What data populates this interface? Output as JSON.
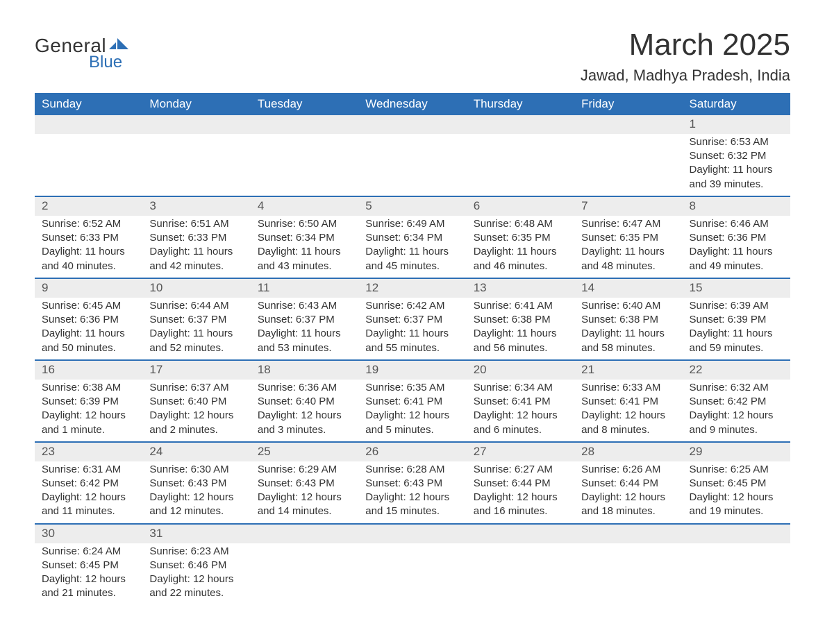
{
  "logo": {
    "text1": "General",
    "text2": "Blue",
    "shape_color": "#2d6fb5"
  },
  "title": "March 2025",
  "location": "Jawad, Madhya Pradesh, India",
  "colors": {
    "header_bg": "#2d6fb5",
    "header_text": "#ffffff",
    "daynum_bg": "#ededed",
    "row_divider": "#2d6fb5",
    "text": "#333333",
    "page_bg": "#ffffff"
  },
  "typography": {
    "title_fontsize": 44,
    "location_fontsize": 22,
    "header_fontsize": 17,
    "body_fontsize": 15
  },
  "day_headers": [
    "Sunday",
    "Monday",
    "Tuesday",
    "Wednesday",
    "Thursday",
    "Friday",
    "Saturday"
  ],
  "weeks": [
    [
      null,
      null,
      null,
      null,
      null,
      null,
      {
        "n": "1",
        "sunrise": "Sunrise: 6:53 AM",
        "sunset": "Sunset: 6:32 PM",
        "daylight": "Daylight: 11 hours and 39 minutes."
      }
    ],
    [
      {
        "n": "2",
        "sunrise": "Sunrise: 6:52 AM",
        "sunset": "Sunset: 6:33 PM",
        "daylight": "Daylight: 11 hours and 40 minutes."
      },
      {
        "n": "3",
        "sunrise": "Sunrise: 6:51 AM",
        "sunset": "Sunset: 6:33 PM",
        "daylight": "Daylight: 11 hours and 42 minutes."
      },
      {
        "n": "4",
        "sunrise": "Sunrise: 6:50 AM",
        "sunset": "Sunset: 6:34 PM",
        "daylight": "Daylight: 11 hours and 43 minutes."
      },
      {
        "n": "5",
        "sunrise": "Sunrise: 6:49 AM",
        "sunset": "Sunset: 6:34 PM",
        "daylight": "Daylight: 11 hours and 45 minutes."
      },
      {
        "n": "6",
        "sunrise": "Sunrise: 6:48 AM",
        "sunset": "Sunset: 6:35 PM",
        "daylight": "Daylight: 11 hours and 46 minutes."
      },
      {
        "n": "7",
        "sunrise": "Sunrise: 6:47 AM",
        "sunset": "Sunset: 6:35 PM",
        "daylight": "Daylight: 11 hours and 48 minutes."
      },
      {
        "n": "8",
        "sunrise": "Sunrise: 6:46 AM",
        "sunset": "Sunset: 6:36 PM",
        "daylight": "Daylight: 11 hours and 49 minutes."
      }
    ],
    [
      {
        "n": "9",
        "sunrise": "Sunrise: 6:45 AM",
        "sunset": "Sunset: 6:36 PM",
        "daylight": "Daylight: 11 hours and 50 minutes."
      },
      {
        "n": "10",
        "sunrise": "Sunrise: 6:44 AM",
        "sunset": "Sunset: 6:37 PM",
        "daylight": "Daylight: 11 hours and 52 minutes."
      },
      {
        "n": "11",
        "sunrise": "Sunrise: 6:43 AM",
        "sunset": "Sunset: 6:37 PM",
        "daylight": "Daylight: 11 hours and 53 minutes."
      },
      {
        "n": "12",
        "sunrise": "Sunrise: 6:42 AM",
        "sunset": "Sunset: 6:37 PM",
        "daylight": "Daylight: 11 hours and 55 minutes."
      },
      {
        "n": "13",
        "sunrise": "Sunrise: 6:41 AM",
        "sunset": "Sunset: 6:38 PM",
        "daylight": "Daylight: 11 hours and 56 minutes."
      },
      {
        "n": "14",
        "sunrise": "Sunrise: 6:40 AM",
        "sunset": "Sunset: 6:38 PM",
        "daylight": "Daylight: 11 hours and 58 minutes."
      },
      {
        "n": "15",
        "sunrise": "Sunrise: 6:39 AM",
        "sunset": "Sunset: 6:39 PM",
        "daylight": "Daylight: 11 hours and 59 minutes."
      }
    ],
    [
      {
        "n": "16",
        "sunrise": "Sunrise: 6:38 AM",
        "sunset": "Sunset: 6:39 PM",
        "daylight": "Daylight: 12 hours and 1 minute."
      },
      {
        "n": "17",
        "sunrise": "Sunrise: 6:37 AM",
        "sunset": "Sunset: 6:40 PM",
        "daylight": "Daylight: 12 hours and 2 minutes."
      },
      {
        "n": "18",
        "sunrise": "Sunrise: 6:36 AM",
        "sunset": "Sunset: 6:40 PM",
        "daylight": "Daylight: 12 hours and 3 minutes."
      },
      {
        "n": "19",
        "sunrise": "Sunrise: 6:35 AM",
        "sunset": "Sunset: 6:41 PM",
        "daylight": "Daylight: 12 hours and 5 minutes."
      },
      {
        "n": "20",
        "sunrise": "Sunrise: 6:34 AM",
        "sunset": "Sunset: 6:41 PM",
        "daylight": "Daylight: 12 hours and 6 minutes."
      },
      {
        "n": "21",
        "sunrise": "Sunrise: 6:33 AM",
        "sunset": "Sunset: 6:41 PM",
        "daylight": "Daylight: 12 hours and 8 minutes."
      },
      {
        "n": "22",
        "sunrise": "Sunrise: 6:32 AM",
        "sunset": "Sunset: 6:42 PM",
        "daylight": "Daylight: 12 hours and 9 minutes."
      }
    ],
    [
      {
        "n": "23",
        "sunrise": "Sunrise: 6:31 AM",
        "sunset": "Sunset: 6:42 PM",
        "daylight": "Daylight: 12 hours and 11 minutes."
      },
      {
        "n": "24",
        "sunrise": "Sunrise: 6:30 AM",
        "sunset": "Sunset: 6:43 PM",
        "daylight": "Daylight: 12 hours and 12 minutes."
      },
      {
        "n": "25",
        "sunrise": "Sunrise: 6:29 AM",
        "sunset": "Sunset: 6:43 PM",
        "daylight": "Daylight: 12 hours and 14 minutes."
      },
      {
        "n": "26",
        "sunrise": "Sunrise: 6:28 AM",
        "sunset": "Sunset: 6:43 PM",
        "daylight": "Daylight: 12 hours and 15 minutes."
      },
      {
        "n": "27",
        "sunrise": "Sunrise: 6:27 AM",
        "sunset": "Sunset: 6:44 PM",
        "daylight": "Daylight: 12 hours and 16 minutes."
      },
      {
        "n": "28",
        "sunrise": "Sunrise: 6:26 AM",
        "sunset": "Sunset: 6:44 PM",
        "daylight": "Daylight: 12 hours and 18 minutes."
      },
      {
        "n": "29",
        "sunrise": "Sunrise: 6:25 AM",
        "sunset": "Sunset: 6:45 PM",
        "daylight": "Daylight: 12 hours and 19 minutes."
      }
    ],
    [
      {
        "n": "30",
        "sunrise": "Sunrise: 6:24 AM",
        "sunset": "Sunset: 6:45 PM",
        "daylight": "Daylight: 12 hours and 21 minutes."
      },
      {
        "n": "31",
        "sunrise": "Sunrise: 6:23 AM",
        "sunset": "Sunset: 6:46 PM",
        "daylight": "Daylight: 12 hours and 22 minutes."
      },
      null,
      null,
      null,
      null,
      null
    ]
  ]
}
